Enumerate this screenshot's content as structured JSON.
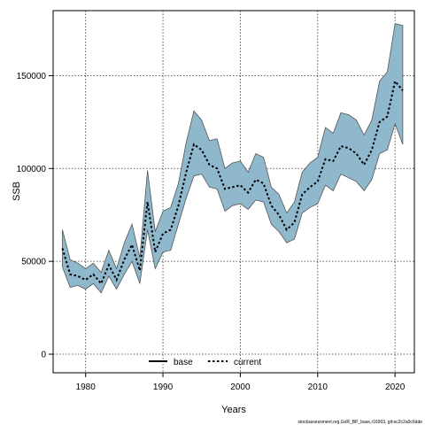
{
  "chart_data": {
    "type": "area",
    "xlabel": "Years",
    "ylabel": "SSB",
    "xlim": [
      1975.8,
      2022.5
    ],
    "ylim": [
      -10000,
      185000
    ],
    "x_ticks": [
      1980,
      1990,
      2000,
      2010,
      2020
    ],
    "y_ticks": [
      0,
      50000,
      100000,
      150000
    ],
    "x_tick_labels": [
      "1980",
      "1990",
      "2000",
      "2010",
      "2020"
    ],
    "y_tick_labels": [
      "0",
      "50000",
      "100000",
      "150000"
    ],
    "grid": true,
    "legend_placement": "bottom-center",
    "legend": [
      {
        "name": "base",
        "style": "solid",
        "color": "#000000"
      },
      {
        "name": "current",
        "style": "dotted",
        "color": "#000000"
      }
    ],
    "band_color": "#8fb8cc",
    "band_edge_color": "#555555",
    "x": [
      1977,
      1978,
      1979,
      1980,
      1981,
      1982,
      1983,
      1984,
      1985,
      1986,
      1987,
      1988,
      1989,
      1990,
      1991,
      1992,
      1993,
      1994,
      1995,
      1996,
      1997,
      1998,
      1999,
      2000,
      2001,
      2002,
      2003,
      2004,
      2005,
      2006,
      2007,
      2008,
      2009,
      2010,
      2011,
      2012,
      2013,
      2014,
      2015,
      2016,
      2017,
      2018,
      2019,
      2020,
      2021
    ],
    "series": [
      {
        "name": "current",
        "values": [
          57000,
          43000,
          42000,
          40000,
          43000,
          38000,
          48000,
          40000,
          51000,
          59000,
          45000,
          82000,
          55000,
          65000,
          67000,
          80000,
          98000,
          113000,
          110000,
          102000,
          100000,
          89000,
          90000,
          91000,
          87000,
          94000,
          92000,
          80000,
          75000,
          67000,
          71000,
          86000,
          90000,
          93000,
          105000,
          104000,
          112000,
          111000,
          108000,
          102000,
          110000,
          125000,
          128000,
          147000,
          142000
        ],
        "lower": [
          47000,
          36000,
          37000,
          35000,
          38000,
          33000,
          42000,
          35000,
          43000,
          50000,
          38000,
          67000,
          46000,
          55000,
          56000,
          70000,
          84000,
          96000,
          97000,
          90000,
          89000,
          77000,
          80000,
          81000,
          78000,
          83000,
          82000,
          70000,
          66000,
          60000,
          62000,
          76000,
          79000,
          81000,
          91000,
          88000,
          97000,
          95000,
          93000,
          88000,
          94000,
          108000,
          110000,
          124000,
          113000
        ],
        "upper": [
          67000,
          51000,
          49000,
          46000,
          49000,
          44000,
          56000,
          46000,
          60000,
          70000,
          52000,
          99000,
          66000,
          77000,
          79000,
          92000,
          114000,
          131000,
          126000,
          115000,
          116000,
          100000,
          103000,
          104000,
          98000,
          108000,
          106000,
          90000,
          86000,
          76000,
          82000,
          98000,
          103000,
          106000,
          122000,
          119000,
          130000,
          129000,
          126000,
          118000,
          126000,
          147000,
          152000,
          178000,
          177000
        ]
      }
    ]
  },
  "footer": {
    "credit": "stockassessment.org,GoR_BP_base,r16963, git:ec2c2a0c6dde"
  }
}
